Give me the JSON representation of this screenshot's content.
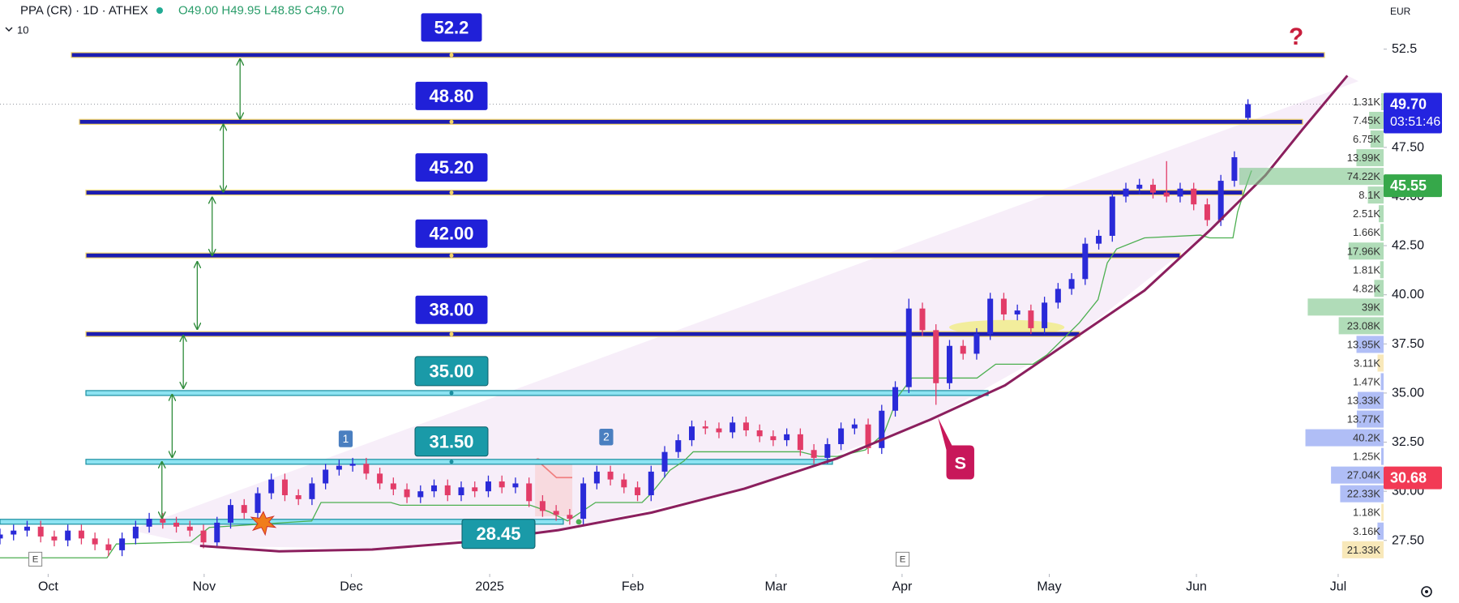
{
  "chart_data": {
    "type": "candlestick",
    "title": "PPA (CR) · 1D · ATHEX",
    "ohlc_text": "O49.00 H49.95 L48.85 C49.70",
    "badge": "10",
    "currency": "EUR",
    "up_color": "#2a2ad8",
    "down_color": "#e23c68",
    "grid": false,
    "x": [
      0,
      2,
      4,
      6,
      8,
      10,
      12,
      14,
      16,
      18,
      20,
      22,
      24,
      26,
      28,
      30,
      32,
      34,
      36,
      38,
      40,
      42,
      44,
      46,
      48,
      50,
      52,
      54,
      56,
      58,
      60,
      62,
      64,
      66,
      68,
      70,
      72,
      74,
      76,
      78,
      80,
      82,
      84,
      86,
      88,
      90,
      92,
      94,
      96,
      98,
      100,
      102,
      104,
      106,
      108,
      110,
      112,
      114,
      116,
      118,
      120,
      122,
      124,
      126,
      128,
      130,
      132,
      134,
      136,
      138,
      140,
      142,
      144,
      146,
      148,
      150,
      152,
      154,
      156,
      158,
      160,
      162,
      164,
      166,
      168,
      170,
      172,
      174,
      176,
      178,
      180,
      182,
      184
    ],
    "candles": {
      "open": [
        27.6,
        27.8,
        28.0,
        28.2,
        27.7,
        27.5,
        28.0,
        27.6,
        27.3,
        27.0,
        27.6,
        28.2,
        28.6,
        28.4,
        28.2,
        28.0,
        27.4,
        28.4,
        29.3,
        28.9,
        29.9,
        30.6,
        29.8,
        29.6,
        30.4,
        31.1,
        31.3,
        31.4,
        30.9,
        30.4,
        30.1,
        29.7,
        30.0,
        30.3,
        29.8,
        30.2,
        30.0,
        30.5,
        30.2,
        30.4,
        29.5,
        29.0,
        28.8,
        28.6,
        30.4,
        31.0,
        30.6,
        30.2,
        29.8,
        31.0,
        32.0,
        32.6,
        33.3,
        33.2,
        33.0,
        33.5,
        33.1,
        32.8,
        32.6,
        32.9,
        32.1,
        31.7,
        32.4,
        33.2,
        33.4,
        32.2,
        34.1,
        35.3,
        39.3,
        38.2,
        35.5,
        37.4,
        37.0,
        38.0,
        39.8,
        39.0,
        39.2,
        38.3,
        39.6,
        40.3,
        40.8,
        42.6,
        43.0,
        45.0,
        45.4,
        45.6,
        45.2,
        45.0,
        45.4,
        44.6,
        43.8,
        45.8,
        49.0
      ],
      "high": [
        28.1,
        28.3,
        28.5,
        28.5,
        28.0,
        28.3,
        28.3,
        27.9,
        27.6,
        27.9,
        28.5,
        28.9,
        28.9,
        28.7,
        28.5,
        28.3,
        28.7,
        29.6,
        29.6,
        30.2,
        30.9,
        30.9,
        30.1,
        30.7,
        31.4,
        31.6,
        31.7,
        31.7,
        31.2,
        30.7,
        30.4,
        30.3,
        30.6,
        30.6,
        30.5,
        30.5,
        30.8,
        30.8,
        30.7,
        30.7,
        29.8,
        29.3,
        29.1,
        30.7,
        31.3,
        31.3,
        30.9,
        30.5,
        31.3,
        32.3,
        32.9,
        33.6,
        33.6,
        33.5,
        33.8,
        33.8,
        33.4,
        33.1,
        33.2,
        33.2,
        32.4,
        32.7,
        33.5,
        33.7,
        33.7,
        34.4,
        35.6,
        39.8,
        39.6,
        38.5,
        37.7,
        37.7,
        38.3,
        40.1,
        40.1,
        39.5,
        39.5,
        39.9,
        40.6,
        41.1,
        42.9,
        43.3,
        45.3,
        45.7,
        45.9,
        45.9,
        46.8,
        45.7,
        45.7,
        44.9,
        46.1,
        47.3,
        49.95
      ],
      "low": [
        27.3,
        27.5,
        27.7,
        27.4,
        27.2,
        27.2,
        27.3,
        27.0,
        26.7,
        26.7,
        27.3,
        27.9,
        28.1,
        27.9,
        27.7,
        27.1,
        27.1,
        28.1,
        28.6,
        28.6,
        29.6,
        29.5,
        29.3,
        29.3,
        30.1,
        30.8,
        31.0,
        30.6,
        30.1,
        29.8,
        29.4,
        29.4,
        29.7,
        29.5,
        29.5,
        29.7,
        29.7,
        29.9,
        29.9,
        29.2,
        28.7,
        28.5,
        28.3,
        28.3,
        30.1,
        30.3,
        29.9,
        29.5,
        29.5,
        30.7,
        31.7,
        32.3,
        32.9,
        32.7,
        32.7,
        32.8,
        32.5,
        32.3,
        32.3,
        31.8,
        31.4,
        31.4,
        32.1,
        32.9,
        31.9,
        31.9,
        33.8,
        35.0,
        37.9,
        34.4,
        35.2,
        36.7,
        36.7,
        37.7,
        38.7,
        38.7,
        38.0,
        38.0,
        39.3,
        40.0,
        40.5,
        42.3,
        42.7,
        44.7,
        45.1,
        44.9,
        44.7,
        44.7,
        44.3,
        43.5,
        43.5,
        45.5,
        48.85
      ],
      "close": [
        27.8,
        28.0,
        28.2,
        27.7,
        27.5,
        28.0,
        27.6,
        27.3,
        27.0,
        27.6,
        28.2,
        28.6,
        28.4,
        28.2,
        28.0,
        27.4,
        28.4,
        29.3,
        28.9,
        29.9,
        30.6,
        29.8,
        29.6,
        30.4,
        31.1,
        31.3,
        31.4,
        30.9,
        30.4,
        30.1,
        29.7,
        30.0,
        30.3,
        29.8,
        30.2,
        30.0,
        30.5,
        30.2,
        30.4,
        29.5,
        29.0,
        28.8,
        28.6,
        30.4,
        31.0,
        30.6,
        30.2,
        29.8,
        31.0,
        32.0,
        32.6,
        33.3,
        33.2,
        33.0,
        33.5,
        33.1,
        32.8,
        32.6,
        32.9,
        32.1,
        31.7,
        32.4,
        33.2,
        33.4,
        32.2,
        34.1,
        35.3,
        39.3,
        38.2,
        35.5,
        37.4,
        37.0,
        38.0,
        39.8,
        39.0,
        39.2,
        38.3,
        39.6,
        40.3,
        40.8,
        42.6,
        43.0,
        45.0,
        45.4,
        45.6,
        45.2,
        45.0,
        45.4,
        44.6,
        43.8,
        45.8,
        47.0,
        49.7
      ]
    },
    "xlim": [
      0,
      204
    ],
    "xticks": [
      {
        "value": 7.1,
        "label": "Oct"
      },
      {
        "value": 30.1,
        "label": "Nov"
      },
      {
        "value": 51.8,
        "label": "Dec"
      },
      {
        "value": 72.2,
        "label": "2025"
      },
      {
        "value": 93.3,
        "label": "Feb"
      },
      {
        "value": 114.4,
        "label": "Mar"
      },
      {
        "value": 133.0,
        "label": "Apr"
      },
      {
        "value": 154.7,
        "label": "May"
      },
      {
        "value": 176.4,
        "label": "Jun"
      },
      {
        "value": 197.3,
        "label": "Jul"
      }
    ],
    "ylim": [
      25.8,
      55.0
    ],
    "yticks": [
      {
        "value": 27.5,
        "label": "27.50"
      },
      {
        "value": 30,
        "label": "30.00"
      },
      {
        "value": 32.5,
        "label": "32.50"
      },
      {
        "value": 35,
        "label": "35.00"
      },
      {
        "value": 37.5,
        "label": "37.50"
      },
      {
        "value": 40,
        "label": "40.00"
      },
      {
        "value": 42.5,
        "label": "42.50"
      },
      {
        "value": 45,
        "label": "45.00"
      },
      {
        "value": 47.5,
        "label": "47.50"
      },
      52.5
    ],
    "levels": [
      {
        "value": 52.2,
        "label": "52.2",
        "style": "major"
      },
      {
        "value": 48.8,
        "label": "48.80",
        "style": "major"
      },
      {
        "value": 45.2,
        "label": "45.20",
        "style": "major"
      },
      {
        "value": 42,
        "label": "42.00",
        "style": "major"
      },
      {
        "value": 38,
        "label": "38.00",
        "style": "major"
      },
      {
        "value": 35,
        "label": "35.00",
        "style": "minor"
      },
      {
        "value": 31.5,
        "label": "31.50",
        "style": "minor"
      },
      {
        "value": 28.45,
        "label": "28.45",
        "style": "minor"
      }
    ],
    "price_tags": [
      {
        "value": 49.7,
        "label": "49.70",
        "color": "#2424e0",
        "countdown": "03:51:46"
      },
      {
        "value": 45.55,
        "label": "45.55",
        "color": "#36a84a"
      },
      {
        "value": 30.68,
        "label": "30.68",
        "color": "#f23a55"
      }
    ],
    "volume_profile": {
      "bins": [
        50.3,
        49.35,
        48.4,
        47.45,
        46.5,
        45.55,
        44.6,
        43.65,
        42.7,
        41.75,
        40.8,
        39.85,
        38.9,
        37.95,
        37.0,
        36.05,
        35.1,
        34.15,
        33.2,
        32.25,
        31.3,
        30.35,
        29.4,
        28.45,
        27.5,
        26.55
      ],
      "values": [
        1.31,
        7.45,
        6.75,
        13.99,
        74.22,
        8.1,
        2.51,
        1.66,
        17.96,
        1.81,
        4.82,
        39,
        23.08,
        13.95,
        3.11,
        1.47,
        13.33,
        13.77,
        40.2,
        1.25,
        27.04,
        22.33,
        1.18,
        3.16,
        21.33
      ],
      "value_labels": [
        "1.31K",
        "7.45K",
        "6.75K",
        "13.99K",
        "74.22K",
        "8.1K",
        "2.51K",
        "1.66K",
        "17.96K",
        "1.81K",
        "4.82K",
        "39K",
        "23.08K",
        "13.95K",
        "3.11K",
        "1.47K",
        "13.33K",
        "13.77K",
        "40.2K",
        "1.25K",
        "27.04K",
        "22.33K",
        "1.18K",
        "3.16K",
        "21.33K"
      ],
      "colors": [
        "#7cc488",
        "#7cc488",
        "#7cc488",
        "#7cc488",
        "#7cc488",
        "#7cc488",
        "#7cc488",
        "#7cc488",
        "#7cc488",
        "#7cc488",
        "#7cc488",
        "#7cc488",
        "#7cc488",
        "#7b93f0",
        "#f3d88a",
        "#7b93f0",
        "#7b93f0",
        "#7b93f0",
        "#7b93f0",
        "#7b93f0",
        "#7b93f0",
        "#7b93f0",
        "#f3d88a",
        "#7b93f0",
        "#f3d88a"
      ]
    },
    "annotations": {
      "marker_1": "1",
      "marker_2": "2",
      "signal": "S",
      "question": "?",
      "earnings": [
        "E",
        "E"
      ]
    }
  }
}
